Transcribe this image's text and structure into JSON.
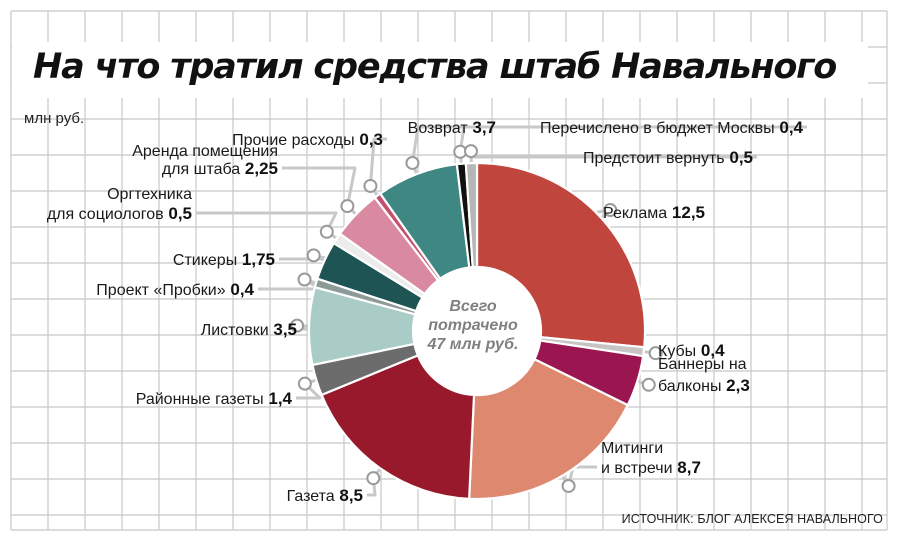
{
  "title": "На что тратил средства штаб Навального",
  "unit": "млн руб.",
  "source": "ИСТОЧНИК: БЛОГ АЛЕКСЕЯ НАВАЛЬНОГО",
  "center_label": [
    "Всего",
    "потрачено",
    "47 млн руб."
  ],
  "colors": {
    "grid": "#c8c8c8",
    "leader": "#c8c8c8"
  },
  "chart_data": {
    "type": "pie",
    "subtype": "donut",
    "title": "На что тратил средства штаб Навального",
    "unit": "млн руб.",
    "total": 47,
    "slices": [
      {
        "label": [
          "Реклама"
        ],
        "value": 12.5,
        "value_text": "12,5",
        "color": "#c0453d"
      },
      {
        "label": [
          "Кубы"
        ],
        "value": 0.4,
        "value_text": "0,4",
        "color": "#c7c4c4"
      },
      {
        "label": [
          "Баннеры на",
          "балконы"
        ],
        "value": 2.3,
        "value_text": "2,3",
        "color": "#9b1650"
      },
      {
        "label": [
          "Митинги",
          "и встречи"
        ],
        "value": 8.7,
        "value_text": "8,7",
        "color": "#de8870"
      },
      {
        "label": [
          "Газета"
        ],
        "value": 8.5,
        "value_text": "8,5",
        "color": "#98192b"
      },
      {
        "label": [
          "Районные газеты"
        ],
        "value": 1.4,
        "value_text": "1,4",
        "color": "#6c6c6c"
      },
      {
        "label": [
          "Листовки"
        ],
        "value": 3.5,
        "value_text": "3,5",
        "color": "#a9ccc6"
      },
      {
        "label": [
          "Проект «Пробки»"
        ],
        "value": 0.4,
        "value_text": "0,4",
        "color": "#8c9a98"
      },
      {
        "label": [
          "Стикеры"
        ],
        "value": 1.75,
        "value_text": "1,75",
        "color": "#1e5454"
      },
      {
        "label": [
          "Оргтехника",
          "для социологов"
        ],
        "value": 0.5,
        "value_text": "0,5",
        "color": "#ececec"
      },
      {
        "label": [
          "Аренда помещения",
          "для штаба"
        ],
        "value": 2.25,
        "value_text": "2,25",
        "color": "#d98aa0"
      },
      {
        "label": [
          "Прочие расходы"
        ],
        "value": 0.3,
        "value_text": "0,3",
        "color": "#c4506c"
      },
      {
        "label": [
          "Возврат"
        ],
        "value": 3.7,
        "value_text": "3,7",
        "color": "#3f8783"
      },
      {
        "label": [
          "Перечислено в бюджет Москвы"
        ],
        "value": 0.4,
        "value_text": "0,4",
        "color": "#111111"
      },
      {
        "label": [
          "Предстоит вернуть"
        ],
        "value": 0.5,
        "value_text": "0,5",
        "color": "#b6b6b6"
      }
    ]
  }
}
